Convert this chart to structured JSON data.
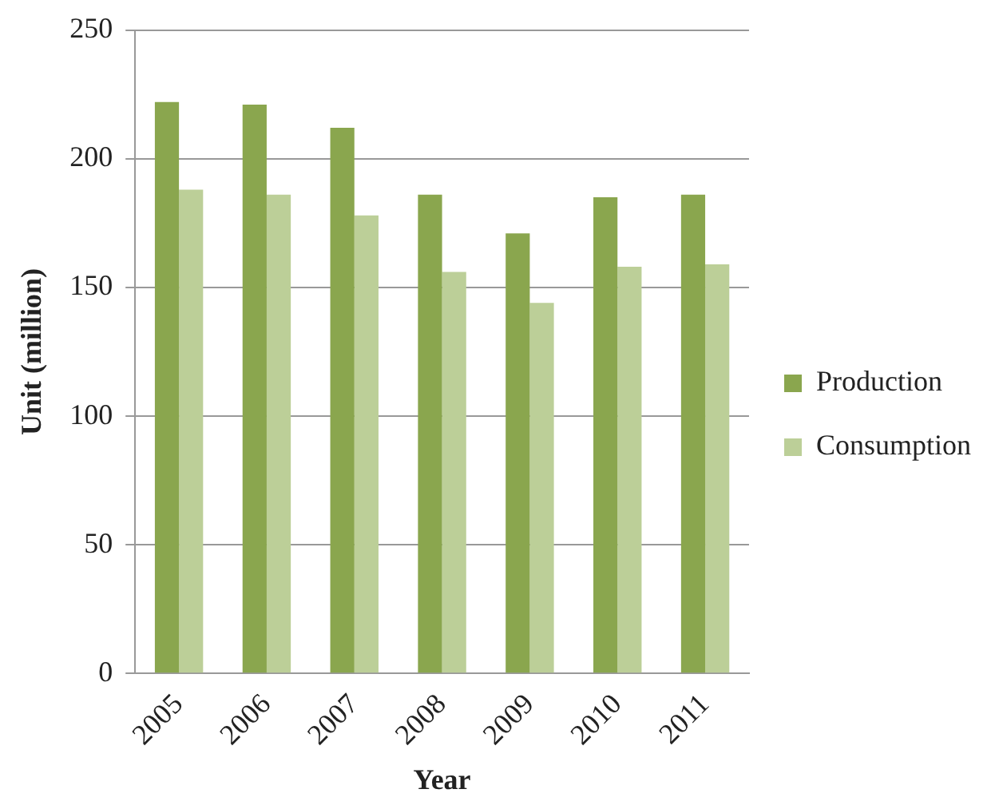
{
  "chart_data": {
    "type": "bar",
    "xlabel": "Year",
    "ylabel": "Unit (million)",
    "categories": [
      "2005",
      "2006",
      "2007",
      "2008",
      "2009",
      "2010",
      "2011"
    ],
    "series": [
      {
        "name": "Production",
        "color": "#8aa64e",
        "values": [
          222,
          221,
          212,
          186,
          171,
          185,
          186
        ]
      },
      {
        "name": "Consumption",
        "color": "#bccf98",
        "values": [
          188,
          186,
          178,
          156,
          144,
          158,
          159
        ]
      }
    ],
    "ylim": [
      0,
      250
    ],
    "yticks": [
      0,
      50,
      100,
      150,
      200,
      250
    ],
    "grid": "y",
    "legend": "right"
  }
}
